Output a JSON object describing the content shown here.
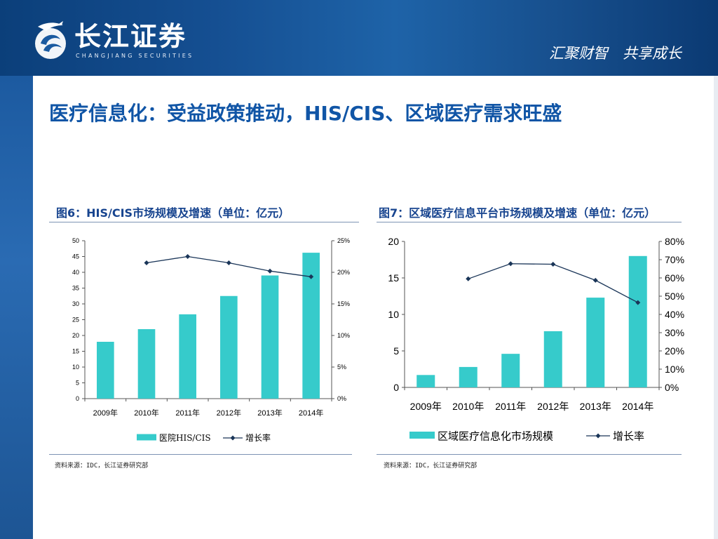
{
  "header": {
    "logo_cn": "长江证券",
    "logo_en": "CHANGJIANG SECURITIES",
    "slogan": "汇聚财智　共享成长"
  },
  "page_title": "医疗信息化：受益政策推动，HIS/CIS、区域医疗需求旺盛",
  "figures": [
    {
      "caption": "图6：HIS/CIS市场规模及增速（单位：亿元）",
      "source": "资料来源：IDC，长江证券研究部"
    },
    {
      "caption": "图7：区域医疗信息平台市场规模及增速（单位：亿元）",
      "source": "资料来源：IDC，长江证券研究部"
    }
  ],
  "colors": {
    "bar": "#36cbcb",
    "line": "#1a3558",
    "title": "#1055a6",
    "banner": "#154f92"
  },
  "chart_data": [
    {
      "type": "bar",
      "categories": [
        "2009年",
        "2010年",
        "2011年",
        "2012年",
        "2013年",
        "2014年"
      ],
      "series": [
        {
          "name": "医院HIS/CIS",
          "type": "bar",
          "axis": "left",
          "values": [
            18,
            22,
            26.7,
            32.5,
            39,
            46.2
          ]
        },
        {
          "name": "增长率",
          "type": "line",
          "axis": "right",
          "values": [
            null,
            21.5,
            22.5,
            21.5,
            20.2,
            19.3
          ]
        }
      ],
      "y_left": {
        "min": 0,
        "max": 50,
        "ticks": [
          "0",
          "5",
          "10",
          "15",
          "20",
          "25",
          "30",
          "35",
          "40",
          "45",
          "50"
        ]
      },
      "y_right": {
        "min": 0,
        "max": 25,
        "ticks": [
          "0%",
          "5%",
          "10%",
          "15%",
          "20%",
          "25%"
        ]
      },
      "legend": "bottom",
      "grid": false
    },
    {
      "type": "bar",
      "categories": [
        "2009年",
        "2010年",
        "2011年",
        "2012年",
        "2013年",
        "2014年"
      ],
      "series": [
        {
          "name": "区域医疗信息化市场规模",
          "type": "bar",
          "axis": "left",
          "values": [
            1.7,
            2.8,
            4.6,
            7.7,
            12.3,
            18
          ]
        },
        {
          "name": "增长率",
          "type": "line",
          "axis": "right",
          "values": [
            null,
            59.5,
            67.8,
            67.5,
            58.7,
            46.5
          ]
        }
      ],
      "y_left": {
        "min": 0,
        "max": 20,
        "ticks": [
          "0",
          "5",
          "10",
          "15",
          "20"
        ]
      },
      "y_right": {
        "min": 0,
        "max": 80,
        "ticks": [
          "0%",
          "10%",
          "20%",
          "30%",
          "40%",
          "50%",
          "60%",
          "70%",
          "80%"
        ]
      },
      "legend": "bottom",
      "grid": false
    }
  ]
}
